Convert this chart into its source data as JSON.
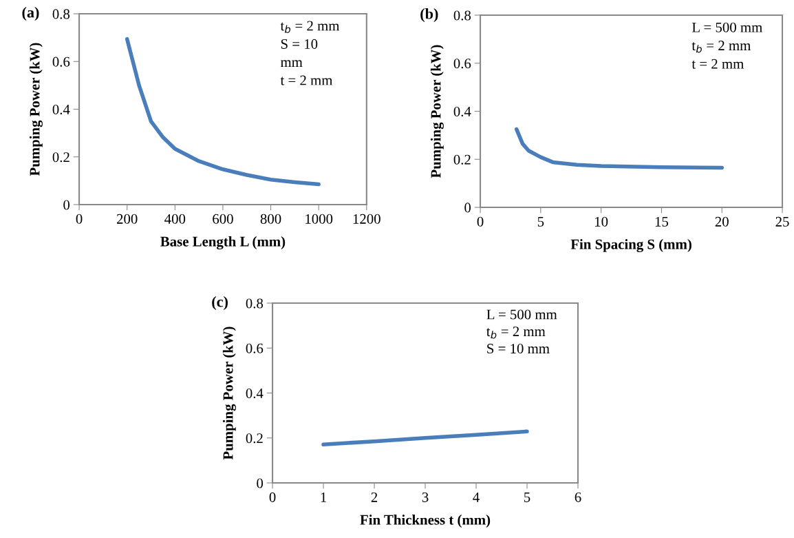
{
  "chart_data": [
    {
      "type": "line",
      "title": "(a)",
      "xlabel": "Base Length L (mm)",
      "ylabel": "Pumping Power (kW)",
      "x": [
        200,
        250,
        300,
        350,
        400,
        500,
        600,
        700,
        800,
        900,
        1000
      ],
      "series": [
        {
          "color": "#4a7ebb",
          "values": [
            0.694,
            0.5,
            0.349,
            0.282,
            0.234,
            0.182,
            0.148,
            0.124,
            0.105,
            0.094,
            0.085
          ]
        }
      ],
      "xlim": [
        0,
        1200
      ],
      "xticks": [
        0,
        200,
        400,
        600,
        800,
        1000,
        1200
      ],
      "ylim": [
        0,
        0.8
      ],
      "yticks": [
        0,
        0.2,
        0.4,
        0.6,
        0.8
      ],
      "annotations": [
        "t$_{b}$ = 2 mm",
        "S = 10",
        "mm",
        "t = 2 mm"
      ],
      "grid": false,
      "legend": false,
      "marker": "none",
      "line_style": "solid"
    },
    {
      "type": "line",
      "title": "(b)",
      "xlabel": "Fin Spacing S (mm)",
      "ylabel": "Pumping Power (kW)",
      "x": [
        3,
        3.5,
        4,
        5,
        6,
        8,
        10,
        15,
        20
      ],
      "series": [
        {
          "color": "#4a7ebb",
          "values": [
            0.325,
            0.265,
            0.236,
            0.209,
            0.188,
            0.177,
            0.172,
            0.167,
            0.165
          ]
        }
      ],
      "xlim": [
        0,
        25
      ],
      "xticks": [
        0,
        5,
        10,
        15,
        20,
        25
      ],
      "ylim": [
        0,
        0.8
      ],
      "yticks": [
        0,
        0.2,
        0.4,
        0.6,
        0.8
      ],
      "annotations": [
        "L = 500 mm",
        "t$_{b}$ = 2 mm",
        "t = 2 mm"
      ],
      "grid": false,
      "legend": false,
      "marker": "none",
      "line_style": "solid"
    },
    {
      "type": "line",
      "title": "(c)",
      "xlabel": "Fin Thickness t (mm)",
      "ylabel": "Pumping Power (kW)",
      "x": [
        1,
        2,
        3,
        4,
        5
      ],
      "series": [
        {
          "color": "#4a7ebb",
          "values": [
            0.171,
            0.185,
            0.2,
            0.214,
            0.229
          ]
        }
      ],
      "xlim": [
        0,
        6
      ],
      "xticks": [
        0,
        1,
        2,
        3,
        4,
        5,
        6
      ],
      "ylim": [
        0,
        0.8
      ],
      "yticks": [
        0,
        0.2,
        0.4,
        0.6,
        0.8
      ],
      "annotations": [
        "L = 500 mm",
        "t$_{b}$ = 2 mm",
        "S = 10 mm"
      ],
      "grid": false,
      "legend": false,
      "marker": "none",
      "line_style": "solid"
    }
  ]
}
